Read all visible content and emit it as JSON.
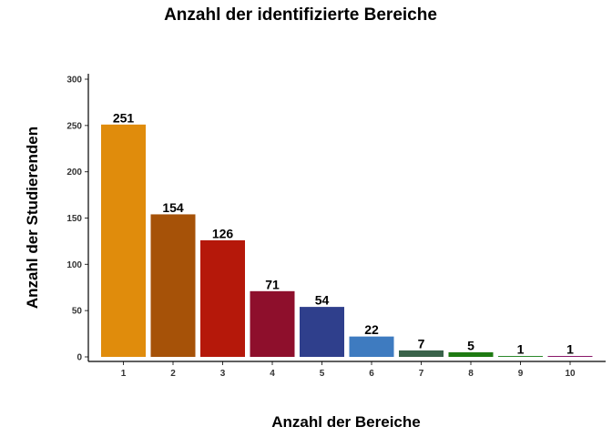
{
  "chart_data": {
    "type": "bar",
    "title": "Anzahl der identifizierte Bereiche",
    "xlabel": "Anzahl der Bereiche",
    "ylabel": "Anzahl der Studierenden",
    "categories": [
      "1",
      "2",
      "3",
      "4",
      "5",
      "6",
      "7",
      "8",
      "9",
      "10"
    ],
    "values": [
      251,
      154,
      126,
      71,
      54,
      22,
      7,
      5,
      1,
      1
    ],
    "data_labels": [
      "251",
      "154",
      "126",
      "71",
      "54",
      "22",
      "7",
      "5",
      "1",
      "1"
    ],
    "colors": [
      "#e08c0c",
      "#a65208",
      "#b5180a",
      "#8e0f2c",
      "#2f3f8c",
      "#3e7bc0",
      "#39634a",
      "#1e7a12",
      "#2e8a2e",
      "#8b1a6b"
    ],
    "ylim": [
      0,
      300
    ],
    "yticks": [
      0,
      50,
      100,
      150,
      200,
      250,
      300
    ],
    "ytick_labels": [
      "0",
      "50",
      "100",
      "150",
      "200",
      "250",
      "300"
    ],
    "grid": false,
    "legend": "none"
  }
}
